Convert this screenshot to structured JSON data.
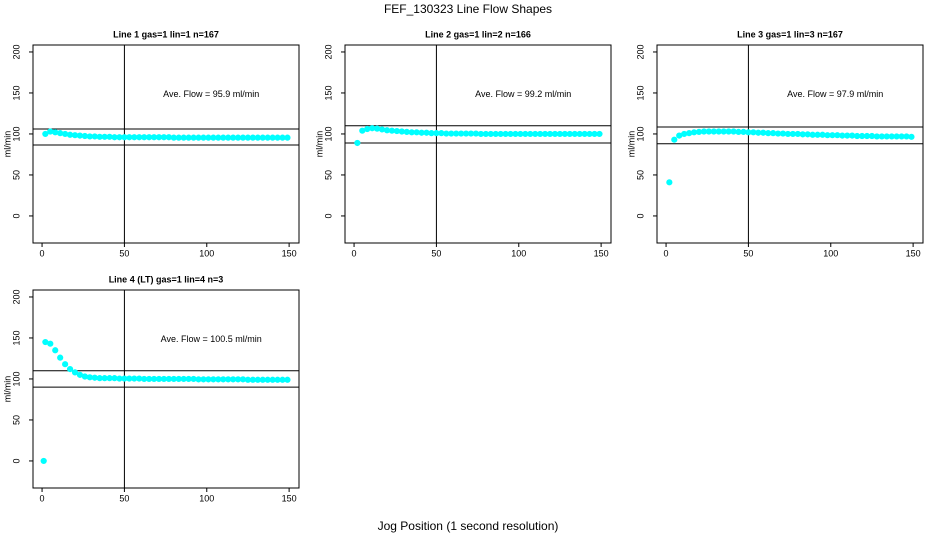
{
  "title": "FEF_130323  Line Flow Shapes",
  "xlabel": "Jog Position (1 second resolution)",
  "chart_data": [
    {
      "type": "scatter",
      "title": "Line 1 gas=1 lin=1 n=167",
      "ylabel": "ml/min",
      "annotation": "Ave. Flow =  95.9  ml/min",
      "color": "#00ffff",
      "xlim": [
        -5.5,
        156
      ],
      "ylim": [
        -33,
        208.5
      ],
      "xticks": [
        0,
        50,
        100,
        150
      ],
      "yticks": [
        0,
        50,
        100,
        150,
        200
      ],
      "hlines": [
        106,
        86.5
      ],
      "vline": 50,
      "x": [
        2,
        5,
        8,
        11,
        14,
        17,
        20,
        23,
        26,
        29,
        32,
        35,
        38,
        41,
        44,
        47,
        50,
        53,
        56,
        59,
        62,
        65,
        68,
        71,
        74,
        77,
        80,
        83,
        86,
        89,
        92,
        95,
        98,
        101,
        104,
        107,
        110,
        113,
        116,
        119,
        122,
        125,
        128,
        131,
        134,
        137,
        140,
        143,
        146,
        149
      ],
      "values": [
        100,
        103,
        102,
        101,
        100,
        99,
        98.5,
        98,
        97.5,
        97,
        97,
        96.5,
        96.5,
        96.5,
        96,
        96,
        96,
        96,
        96,
        96,
        96,
        96,
        96,
        96,
        96,
        96,
        95.5,
        95.5,
        95.5,
        95.5,
        95.5,
        95.5,
        95.5,
        95.5,
        95.5,
        95.5,
        95.5,
        95.5,
        95.5,
        95.5,
        95.5,
        95.5,
        95.5,
        95.5,
        95.5,
        95.5,
        95.5,
        95.5,
        95.5,
        95.5
      ]
    },
    {
      "type": "scatter",
      "title": "Line 2 gas=1 lin=2 n=166",
      "ylabel": "ml/min",
      "annotation": "Ave. Flow =  99.2  ml/min",
      "color": "#00ffff",
      "xlim": [
        -5.5,
        156
      ],
      "ylim": [
        -33,
        208.5
      ],
      "xticks": [
        0,
        50,
        100,
        150
      ],
      "yticks": [
        0,
        50,
        100,
        150,
        200
      ],
      "hlines": [
        110,
        89
      ],
      "vline": 50,
      "x": [
        2,
        5,
        8,
        11,
        14,
        17,
        20,
        23,
        26,
        29,
        32,
        35,
        38,
        41,
        44,
        47,
        50,
        53,
        56,
        59,
        62,
        65,
        68,
        71,
        74,
        77,
        80,
        83,
        86,
        89,
        92,
        95,
        98,
        101,
        104,
        107,
        110,
        113,
        116,
        119,
        122,
        125,
        128,
        131,
        134,
        137,
        140,
        143,
        146,
        149
      ],
      "values": [
        89,
        104,
        106,
        107,
        106.5,
        105.5,
        104.5,
        104,
        103.5,
        103,
        102.5,
        102,
        102,
        101.5,
        101.5,
        101,
        101,
        101,
        100.5,
        100.5,
        100.5,
        100.5,
        100.5,
        100.5,
        100.5,
        100,
        100,
        100,
        100,
        100,
        100,
        100,
        100,
        100,
        100,
        100,
        100,
        100,
        100,
        100,
        100,
        100,
        100,
        100,
        100,
        100,
        100,
        100,
        100,
        100
      ]
    },
    {
      "type": "scatter",
      "title": "Line 3 gas=1 lin=3 n=167",
      "ylabel": "ml/min",
      "annotation": "Ave. Flow =  97.9  ml/min",
      "color": "#00ffff",
      "xlim": [
        -5.5,
        156
      ],
      "ylim": [
        -33,
        208.5
      ],
      "xticks": [
        0,
        50,
        100,
        150
      ],
      "yticks": [
        0,
        50,
        100,
        150,
        200
      ],
      "hlines": [
        108.5,
        88
      ],
      "vline": 50,
      "x": [
        2,
        5,
        8,
        11,
        14,
        17,
        20,
        23,
        26,
        29,
        32,
        35,
        38,
        41,
        44,
        47,
        50,
        53,
        56,
        59,
        62,
        65,
        68,
        71,
        74,
        77,
        80,
        83,
        86,
        89,
        92,
        95,
        98,
        101,
        104,
        107,
        110,
        113,
        116,
        119,
        122,
        125,
        128,
        131,
        134,
        137,
        140,
        143,
        146,
        149
      ],
      "values": [
        41,
        93,
        98,
        100,
        101,
        102,
        102.5,
        103,
        103,
        103,
        103,
        103,
        103,
        103,
        102.5,
        102.5,
        102,
        102,
        101.5,
        101.5,
        101,
        101,
        100.5,
        100.5,
        100,
        100,
        100,
        99.5,
        99.5,
        99,
        99,
        99,
        98.5,
        98.5,
        98.5,
        98,
        98,
        98,
        97.5,
        97.5,
        97.5,
        97.5,
        97,
        97,
        97,
        97,
        97,
        97,
        97,
        96.5
      ]
    },
    {
      "type": "scatter",
      "title": "Line 4 (LT) gas=1 lin=4 n=3",
      "ylabel": "ml/min",
      "annotation": "Ave. Flow =  100.5  ml/min",
      "color": "#00ffff",
      "xlim": [
        -5.5,
        156
      ],
      "ylim": [
        -33,
        208.5
      ],
      "xticks": [
        0,
        50,
        100,
        150
      ],
      "yticks": [
        0,
        50,
        100,
        150,
        200
      ],
      "hlines": [
        110,
        90
      ],
      "vline": 50,
      "x": [
        1,
        2,
        5,
        8,
        11,
        14,
        17,
        20,
        23,
        26,
        29,
        32,
        35,
        38,
        41,
        44,
        47,
        50,
        53,
        56,
        59,
        62,
        65,
        68,
        71,
        74,
        77,
        80,
        83,
        86,
        89,
        92,
        95,
        98,
        101,
        104,
        107,
        110,
        113,
        116,
        119,
        122,
        125,
        128,
        131,
        134,
        137,
        140,
        143,
        146,
        149
      ],
      "values": [
        0,
        145,
        143,
        135,
        126,
        118,
        112,
        108,
        105,
        103,
        102,
        101.5,
        101,
        101,
        101,
        101,
        100.5,
        100.5,
        100.5,
        100.5,
        100.5,
        100,
        100,
        100,
        100,
        100,
        100,
        100,
        100,
        100,
        100,
        100,
        99.5,
        99.5,
        99.5,
        99.5,
        99.5,
        99.5,
        99.5,
        99.5,
        99.5,
        99.5,
        99,
        99,
        99,
        99,
        99,
        99,
        99,
        99,
        99
      ]
    }
  ]
}
